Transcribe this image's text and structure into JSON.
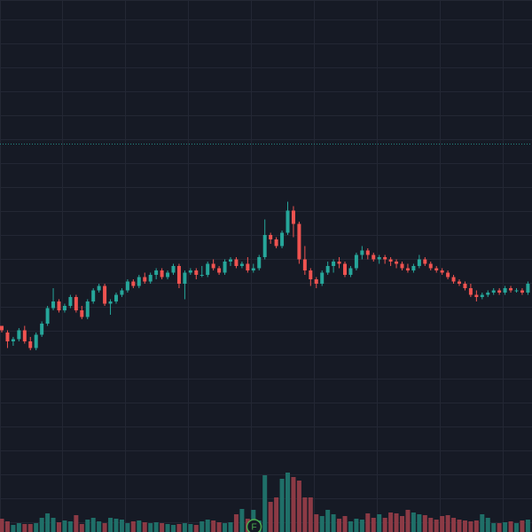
{
  "theme": {
    "background": "#161a25",
    "grid": "#232734",
    "up": "#26a69a",
    "down": "#ef5350",
    "up_volume": "#1f6f68",
    "down_volume": "#8c3a45",
    "priceline": "#26a69a",
    "event_marker": "#4caf50"
  },
  "chart_data": {
    "type": "candlestick",
    "title": "",
    "grid": true,
    "price_axis_labels_visible": false,
    "time_axis_labels_visible": false,
    "price_line": 17.5,
    "ylim": [
      0,
      24
    ],
    "volume_ylim": [
      0,
      10
    ],
    "ohlc": [
      [
        9.3,
        9.3,
        9.0,
        9.1
      ],
      [
        9.0,
        9.1,
        8.3,
        8.6
      ],
      [
        8.6,
        8.8,
        8.4,
        8.7
      ],
      [
        8.7,
        9.2,
        8.6,
        9.1
      ],
      [
        9.1,
        9.3,
        8.5,
        8.6
      ],
      [
        8.6,
        8.8,
        8.2,
        8.3
      ],
      [
        8.3,
        9.0,
        8.2,
        8.9
      ],
      [
        8.9,
        9.5,
        8.8,
        9.4
      ],
      [
        9.4,
        10.2,
        9.3,
        10.1
      ],
      [
        10.1,
        11.0,
        10.0,
        10.4
      ],
      [
        10.4,
        10.5,
        9.9,
        10.0
      ],
      [
        10.0,
        10.3,
        9.9,
        10.2
      ],
      [
        10.2,
        10.7,
        10.1,
        10.6
      ],
      [
        10.6,
        10.7,
        9.9,
        10.0
      ],
      [
        10.0,
        10.2,
        9.6,
        9.7
      ],
      [
        9.7,
        10.5,
        9.6,
        10.4
      ],
      [
        10.4,
        11.0,
        10.3,
        10.9
      ],
      [
        10.9,
        11.2,
        10.8,
        11.1
      ],
      [
        11.1,
        11.2,
        10.2,
        10.3
      ],
      [
        10.3,
        10.5,
        9.8,
        10.4
      ],
      [
        10.4,
        10.8,
        10.3,
        10.7
      ],
      [
        10.7,
        11.0,
        10.6,
        10.9
      ],
      [
        10.9,
        11.4,
        10.8,
        11.3
      ],
      [
        11.3,
        11.4,
        11.0,
        11.1
      ],
      [
        11.1,
        11.6,
        11.0,
        11.5
      ],
      [
        11.5,
        11.7,
        11.2,
        11.3
      ],
      [
        11.3,
        11.7,
        11.2,
        11.6
      ],
      [
        11.6,
        11.9,
        11.4,
        11.8
      ],
      [
        11.8,
        11.9,
        11.4,
        11.5
      ],
      [
        11.5,
        11.8,
        11.4,
        11.7
      ],
      [
        11.7,
        12.1,
        11.6,
        12.0
      ],
      [
        12.0,
        12.1,
        11.0,
        11.2
      ],
      [
        11.2,
        11.8,
        10.5,
        11.7
      ],
      [
        11.7,
        11.9,
        11.6,
        11.8
      ],
      [
        11.8,
        11.9,
        11.4,
        11.6
      ],
      [
        11.6,
        12.0,
        11.5,
        11.6
      ],
      [
        11.6,
        12.2,
        11.5,
        12.1
      ],
      [
        12.1,
        12.3,
        11.8,
        11.9
      ],
      [
        11.9,
        12.0,
        11.6,
        11.7
      ],
      [
        11.7,
        12.3,
        11.6,
        12.2
      ],
      [
        12.2,
        12.4,
        12.0,
        12.3
      ],
      [
        12.3,
        12.4,
        11.9,
        12.0
      ],
      [
        12.0,
        12.2,
        11.9,
        12.1
      ],
      [
        12.1,
        12.4,
        11.7,
        11.8
      ],
      [
        11.8,
        12.1,
        11.7,
        11.9
      ],
      [
        11.9,
        12.5,
        11.8,
        12.4
      ],
      [
        12.4,
        14.1,
        12.3,
        13.4
      ],
      [
        13.4,
        13.5,
        13.0,
        13.2
      ],
      [
        13.2,
        13.3,
        12.8,
        12.9
      ],
      [
        12.9,
        13.6,
        12.8,
        13.5
      ],
      [
        13.5,
        14.9,
        13.4,
        14.5
      ],
      [
        14.5,
        14.7,
        13.3,
        13.9
      ],
      [
        13.9,
        14.0,
        12.1,
        12.3
      ],
      [
        12.3,
        12.9,
        11.6,
        11.8
      ],
      [
        11.8,
        11.9,
        11.1,
        11.4
      ],
      [
        11.4,
        11.5,
        11.0,
        11.2
      ],
      [
        11.2,
        11.8,
        11.1,
        11.7
      ],
      [
        11.7,
        12.2,
        11.6,
        12.0
      ],
      [
        12.0,
        12.3,
        11.7,
        12.2
      ],
      [
        12.2,
        12.4,
        11.9,
        12.1
      ],
      [
        12.1,
        12.2,
        11.5,
        11.6
      ],
      [
        11.6,
        12.0,
        11.5,
        11.9
      ],
      [
        11.9,
        12.6,
        11.8,
        12.5
      ],
      [
        12.5,
        12.9,
        12.3,
        12.7
      ],
      [
        12.7,
        12.8,
        12.3,
        12.5
      ],
      [
        12.5,
        12.6,
        12.2,
        12.3
      ],
      [
        12.3,
        12.5,
        12.1,
        12.4
      ],
      [
        12.4,
        12.5,
        12.1,
        12.3
      ],
      [
        12.3,
        12.4,
        12.0,
        12.2
      ],
      [
        12.2,
        12.3,
        11.9,
        12.1
      ],
      [
        12.1,
        12.2,
        11.8,
        11.9
      ],
      [
        11.9,
        12.1,
        11.7,
        11.8
      ],
      [
        11.8,
        12.1,
        11.7,
        12.0
      ],
      [
        12.0,
        12.5,
        11.9,
        12.3
      ],
      [
        12.3,
        12.4,
        12.0,
        12.1
      ],
      [
        12.1,
        12.2,
        11.8,
        11.9
      ],
      [
        11.9,
        12.0,
        11.7,
        11.8
      ],
      [
        11.8,
        11.9,
        11.6,
        11.7
      ],
      [
        11.7,
        11.8,
        11.4,
        11.5
      ],
      [
        11.5,
        11.6,
        11.2,
        11.3
      ],
      [
        11.3,
        11.4,
        11.1,
        11.2
      ],
      [
        11.2,
        11.3,
        10.9,
        11.0
      ],
      [
        11.0,
        11.2,
        10.6,
        10.7
      ],
      [
        10.7,
        10.9,
        10.4,
        10.6
      ],
      [
        10.6,
        10.8,
        10.5,
        10.7
      ],
      [
        10.7,
        10.9,
        10.6,
        10.8
      ],
      [
        10.8,
        11.0,
        10.7,
        10.9
      ],
      [
        10.9,
        11.0,
        10.7,
        10.8
      ],
      [
        10.8,
        11.1,
        10.7,
        11.0
      ],
      [
        11.0,
        11.1,
        10.8,
        10.9
      ],
      [
        10.9,
        11.0,
        10.8,
        10.9
      ],
      [
        10.9,
        11.0,
        10.7,
        10.8
      ],
      [
        10.8,
        11.3,
        10.7,
        11.2
      ]
    ],
    "volume": [
      1.5,
      1.2,
      0.8,
      1.0,
      0.9,
      0.9,
      1.0,
      1.6,
      2.1,
      1.6,
      1.1,
      1.3,
      1.2,
      1.9,
      0.9,
      1.4,
      1.6,
      1.2,
      1.0,
      1.6,
      1.5,
      1.4,
      1.0,
      1.2,
      1.3,
      1.1,
      1.0,
      1.1,
      1.0,
      0.9,
      0.8,
      0.9,
      1.0,
      0.9,
      0.8,
      1.2,
      1.4,
      1.3,
      1.1,
      1.0,
      1.1,
      2.0,
      2.6,
      1.5,
      2.5,
      1.3,
      6.4,
      3.4,
      3.9,
      6.0,
      6.7,
      6.2,
      5.8,
      3.9,
      3.9,
      2.0,
      1.8,
      2.5,
      2.0,
      1.5,
      1.8,
      1.2,
      1.5,
      1.4,
      2.1,
      1.6,
      2.0,
      1.6,
      2.2,
      2.1,
      1.8,
      2.5,
      2.2,
      2.0,
      1.9,
      1.6,
      1.4,
      1.8,
      1.9,
      1.6,
      1.4,
      1.3,
      1.2,
      1.3,
      2.0,
      1.6,
      1.0,
      1.0,
      1.1,
      1.2,
      1.0,
      1.3,
      1.4
    ],
    "event_marker": {
      "label": "F",
      "candle_index": 39
    }
  }
}
